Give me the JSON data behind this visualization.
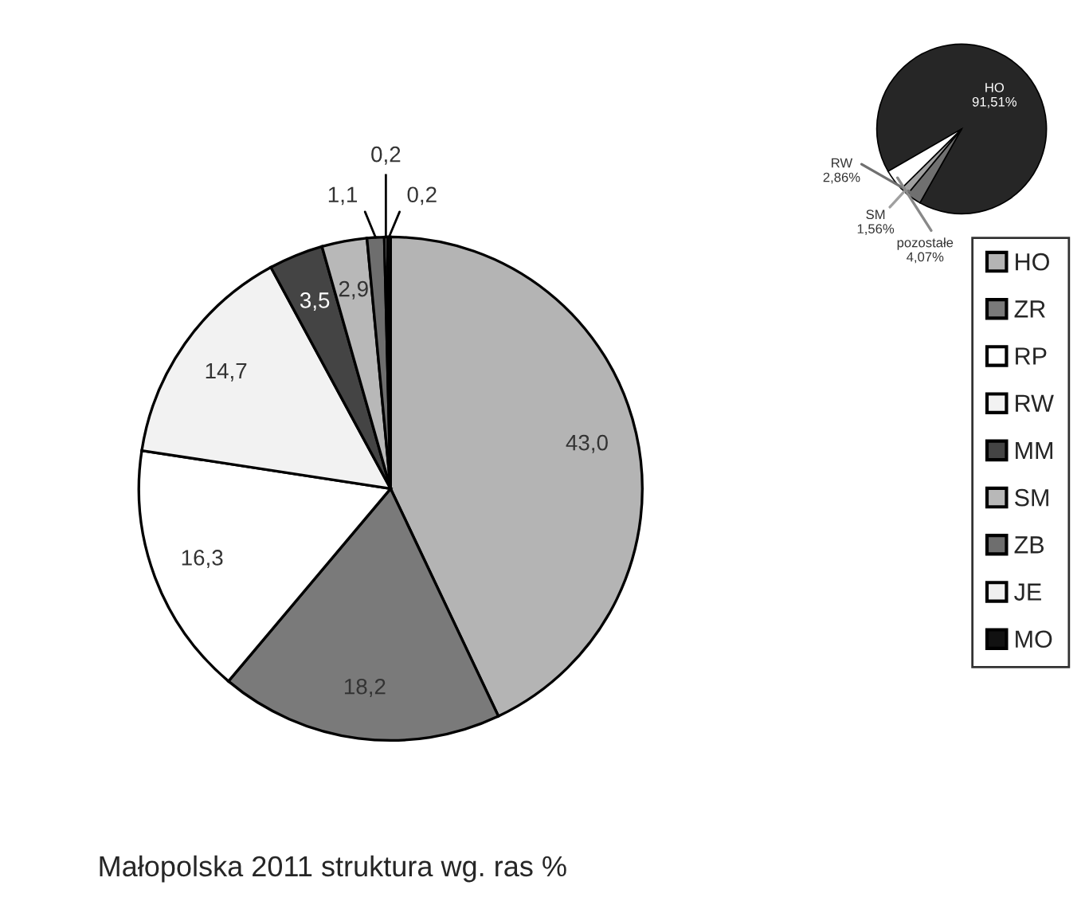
{
  "chart_data": [
    {
      "type": "pie",
      "title": "Małopolska 2011 struktura wg. ras %",
      "categories": [
        "HO",
        "ZR",
        "RP",
        "RW",
        "MM",
        "SM",
        "ZB",
        "JE",
        "MO"
      ],
      "values": [
        43.0,
        18.2,
        16.3,
        14.7,
        3.5,
        2.9,
        1.1,
        0.2,
        0.2
      ],
      "value_labels": [
        "43,0",
        "18,2",
        "16,3",
        "14,7",
        "3,5",
        "2,9",
        "1,1",
        "0,2",
        "0,2"
      ],
      "colors": [
        "#b4b4b4",
        "#7a7a7a",
        "#ffffff",
        "#f2f2f2",
        "#444444",
        "#b8b8b8",
        "#6e6e6e",
        "#f0f0f0",
        "#111111"
      ],
      "legend": "right"
    },
    {
      "type": "pie",
      "categories": [
        "HO",
        "RW",
        "SM",
        "pozostałe"
      ],
      "values": [
        91.51,
        2.86,
        1.56,
        4.07
      ],
      "value_labels": [
        "91,51%",
        "2,86%",
        "1,56%",
        "4,07%"
      ],
      "colors": [
        "#262626",
        "#707070",
        "#a0a0a0",
        "#ffffff"
      ]
    }
  ]
}
